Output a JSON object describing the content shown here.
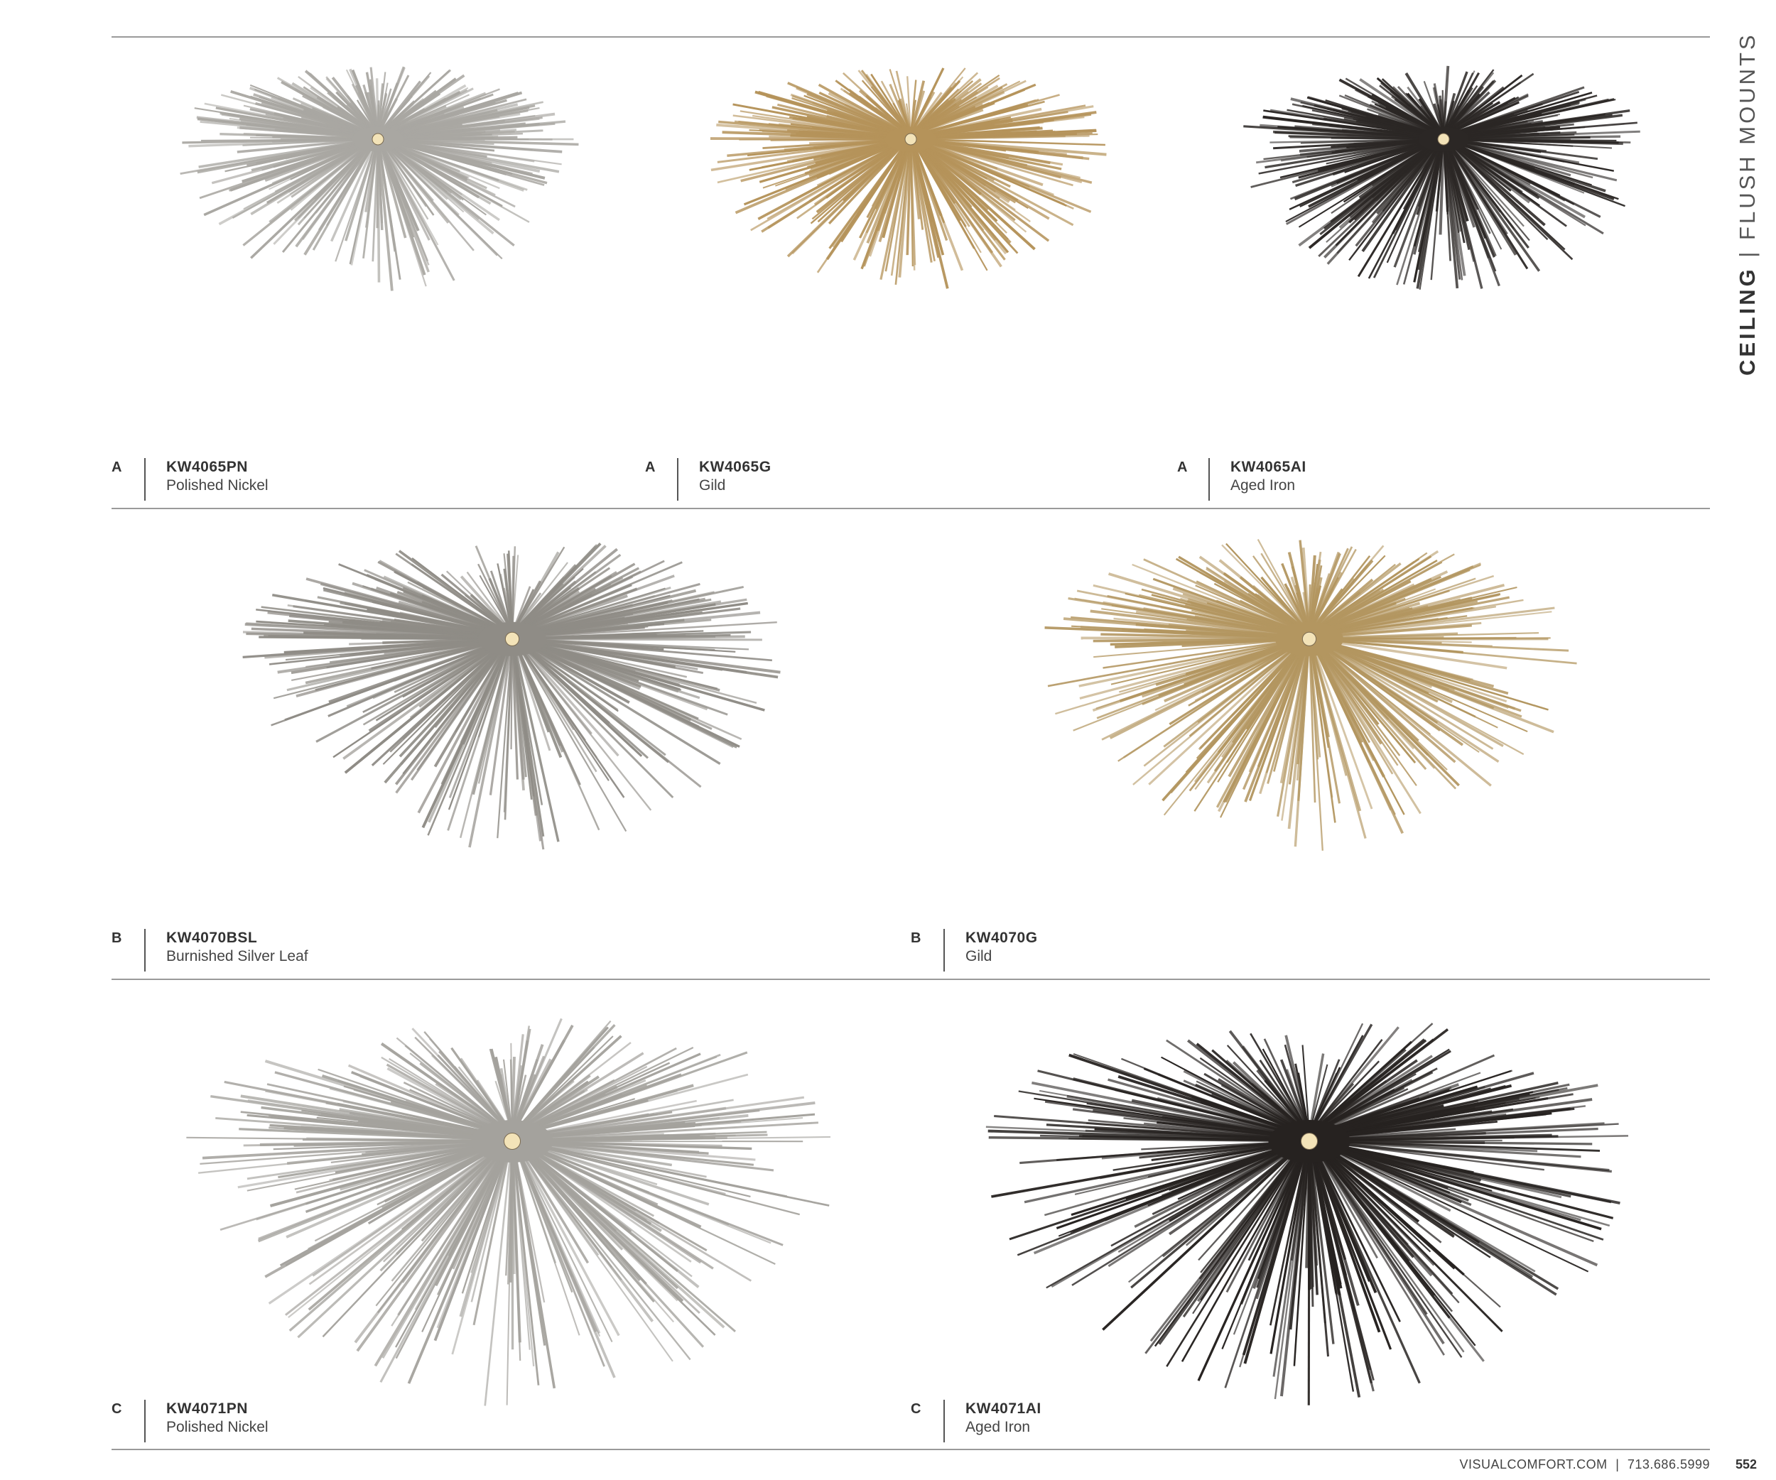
{
  "section": {
    "category": "CEILING",
    "divider": "|",
    "subcategory": "FLUSH MOUNTS"
  },
  "rows": [
    {
      "items": [
        {
          "letter": "A",
          "code": "KW4065PN",
          "finish": "Polished Nickel",
          "color": "#a9a7a2"
        },
        {
          "letter": "A",
          "code": "KW4065G",
          "finish": "Gild",
          "color": "#b5935a"
        },
        {
          "letter": "A",
          "code": "KW4065AI",
          "finish": "Aged Iron",
          "color": "#2b2725"
        }
      ]
    },
    {
      "items": [
        {
          "letter": "B",
          "code": "KW4070BSL",
          "finish": "Burnished Silver Leaf",
          "color": "#8f8c86"
        },
        {
          "letter": "B",
          "code": "KW4070G",
          "finish": "Gild",
          "color": "#b39660"
        }
      ]
    },
    {
      "items": [
        {
          "letter": "C",
          "code": "KW4071PN",
          "finish": "Polished Nickel",
          "color": "#a4a29d"
        },
        {
          "letter": "C",
          "code": "KW4071AI",
          "finish": "Aged Iron",
          "color": "#262220"
        }
      ]
    }
  ],
  "footer": {
    "website": "VISUALCOMFORT.COM",
    "divider": "|",
    "phone": "713.686.5999",
    "page_number": "552"
  }
}
